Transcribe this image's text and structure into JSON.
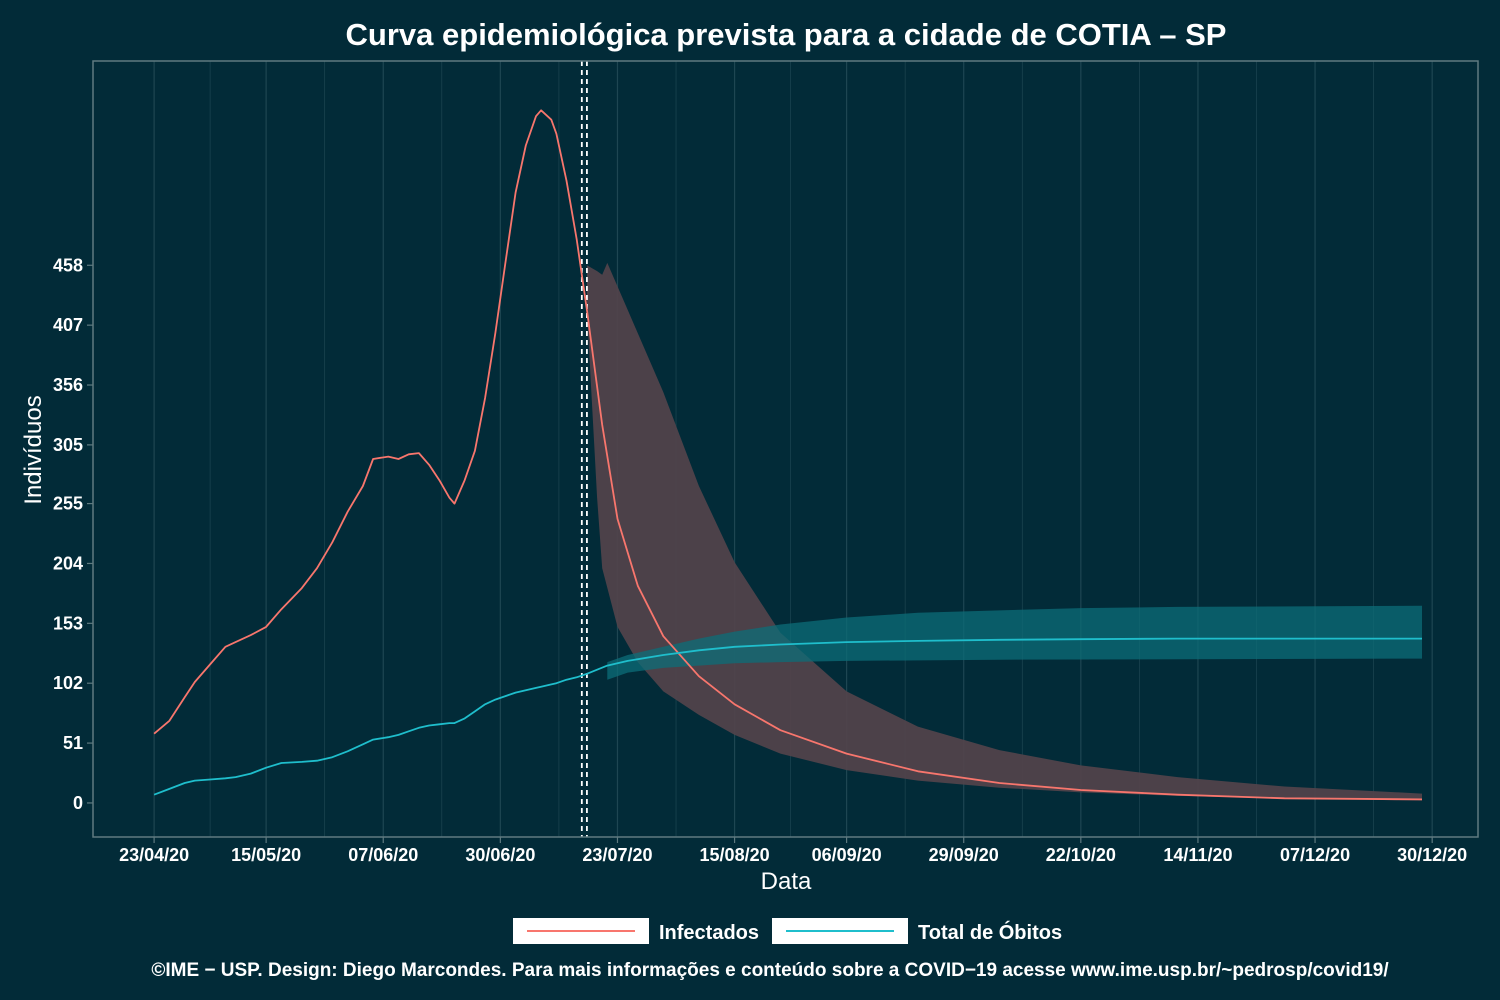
{
  "chart_data": {
    "type": "line",
    "title": "Curva epidemiológica prevista para a cidade de COTIA – SP",
    "xlabel": "Data",
    "ylabel": "Indivíduos",
    "x_ticks": [
      "23/04/20",
      "15/05/20",
      "07/06/20",
      "30/06/20",
      "23/07/20",
      "15/08/20",
      "06/09/20",
      "29/09/20",
      "22/10/20",
      "14/11/20",
      "07/12/20",
      "30/12/20"
    ],
    "y_ticks": [
      0,
      51,
      102,
      153,
      204,
      255,
      305,
      356,
      407,
      458
    ],
    "xlim": [
      "11/04/20",
      "08/01/21"
    ],
    "ylim": [
      -29,
      632
    ],
    "observed_until": [
      "16/07/20",
      "17/07/20"
    ],
    "grid": true,
    "legend_position": "bottom",
    "series": [
      {
        "name": "Infectados",
        "color": "#f8766d",
        "points": [
          [
            "23/04/20",
            59
          ],
          [
            "26/04/20",
            70
          ],
          [
            "29/04/20",
            90
          ],
          [
            "01/05/20",
            103
          ],
          [
            "04/05/20",
            118
          ],
          [
            "07/05/20",
            133
          ],
          [
            "09/05/20",
            137
          ],
          [
            "12/05/20",
            143
          ],
          [
            "15/05/20",
            150
          ],
          [
            "18/05/20",
            165
          ],
          [
            "22/05/20",
            183
          ],
          [
            "25/05/20",
            200
          ],
          [
            "28/05/20",
            222
          ],
          [
            "31/05/20",
            248
          ],
          [
            "03/06/20",
            270
          ],
          [
            "05/06/20",
            293
          ],
          [
            "08/06/20",
            295
          ],
          [
            "10/06/20",
            293
          ],
          [
            "12/06/20",
            297
          ],
          [
            "14/06/20",
            298
          ],
          [
            "16/06/20",
            288
          ],
          [
            "18/06/20",
            275
          ],
          [
            "20/06/20",
            260
          ],
          [
            "21/06/20",
            255
          ],
          [
            "23/06/20",
            275
          ],
          [
            "25/06/20",
            300
          ],
          [
            "27/06/20",
            345
          ],
          [
            "29/06/20",
            400
          ],
          [
            "01/07/20",
            460
          ],
          [
            "03/07/20",
            520
          ],
          [
            "05/07/20",
            560
          ],
          [
            "07/07/20",
            585
          ],
          [
            "08/07/20",
            590
          ],
          [
            "10/07/20",
            582
          ],
          [
            "11/07/20",
            570
          ],
          [
            "13/07/20",
            530
          ],
          [
            "15/07/20",
            480
          ],
          [
            "17/07/20",
            420
          ],
          [
            "20/07/20",
            322
          ],
          [
            "23/07/20",
            242
          ],
          [
            "27/07/20",
            185
          ],
          [
            "01/08/20",
            142
          ],
          [
            "08/08/20",
            108
          ],
          [
            "15/08/20",
            84
          ],
          [
            "24/08/20",
            62
          ],
          [
            "06/09/20",
            42
          ],
          [
            "20/09/20",
            27
          ],
          [
            "06/10/20",
            17
          ],
          [
            "22/10/20",
            11
          ],
          [
            "10/11/20",
            7
          ],
          [
            "01/12/20",
            4
          ],
          [
            "28/12/20",
            3
          ]
        ],
        "band_lower": [
          [
            "17/07/20",
            420
          ],
          [
            "19/07/20",
            260
          ],
          [
            "20/07/20",
            200
          ],
          [
            "23/07/20",
            150
          ],
          [
            "27/07/20",
            120
          ],
          [
            "01/08/20",
            95
          ],
          [
            "08/08/20",
            75
          ],
          [
            "15/08/20",
            58
          ],
          [
            "24/08/20",
            42
          ],
          [
            "06/09/20",
            28
          ],
          [
            "20/09/20",
            19
          ],
          [
            "06/10/20",
            13
          ],
          [
            "22/10/20",
            9
          ],
          [
            "10/11/20",
            6
          ],
          [
            "01/12/20",
            4
          ],
          [
            "28/12/20",
            2
          ]
        ],
        "band_upper": [
          [
            "17/07/20",
            458
          ],
          [
            "19/07/20",
            453
          ],
          [
            "20/07/20",
            450
          ],
          [
            "21/07/20",
            460
          ],
          [
            "25/07/20",
            420
          ],
          [
            "01/08/20",
            350
          ],
          [
            "08/08/20",
            270
          ],
          [
            "15/08/20",
            205
          ],
          [
            "24/08/20",
            145
          ],
          [
            "06/09/20",
            95
          ],
          [
            "20/09/20",
            65
          ],
          [
            "06/10/20",
            45
          ],
          [
            "22/10/20",
            32
          ],
          [
            "10/11/20",
            22
          ],
          [
            "01/12/20",
            14
          ],
          [
            "28/12/20",
            8
          ]
        ]
      },
      {
        "name": "Total de Óbitos",
        "color": "#1fbecc",
        "points": [
          [
            "23/04/20",
            7
          ],
          [
            "26/04/20",
            12
          ],
          [
            "29/04/20",
            17
          ],
          [
            "01/05/20",
            19
          ],
          [
            "04/05/20",
            20
          ],
          [
            "07/05/20",
            21
          ],
          [
            "09/05/20",
            22
          ],
          [
            "12/05/20",
            25
          ],
          [
            "15/05/20",
            30
          ],
          [
            "18/05/20",
            34
          ],
          [
            "22/05/20",
            35
          ],
          [
            "25/05/20",
            36
          ],
          [
            "28/05/20",
            39
          ],
          [
            "31/05/20",
            44
          ],
          [
            "03/06/20",
            50
          ],
          [
            "05/06/20",
            54
          ],
          [
            "08/06/20",
            56
          ],
          [
            "10/06/20",
            58
          ],
          [
            "12/06/20",
            61
          ],
          [
            "14/06/20",
            64
          ],
          [
            "16/06/20",
            66
          ],
          [
            "18/06/20",
            67
          ],
          [
            "20/06/20",
            68
          ],
          [
            "21/06/20",
            68
          ],
          [
            "23/06/20",
            72
          ],
          [
            "25/06/20",
            78
          ],
          [
            "27/06/20",
            84
          ],
          [
            "29/06/20",
            88
          ],
          [
            "01/07/20",
            91
          ],
          [
            "03/07/20",
            94
          ],
          [
            "05/07/20",
            96
          ],
          [
            "07/07/20",
            98
          ],
          [
            "08/07/20",
            99
          ],
          [
            "10/07/20",
            101
          ],
          [
            "11/07/20",
            102
          ],
          [
            "13/07/20",
            105
          ],
          [
            "15/07/20",
            107
          ],
          [
            "17/07/20",
            110
          ],
          [
            "21/07/20",
            117
          ],
          [
            "25/07/20",
            121
          ],
          [
            "01/08/20",
            126
          ],
          [
            "08/08/20",
            130
          ],
          [
            "15/08/20",
            133
          ],
          [
            "24/08/20",
            135
          ],
          [
            "06/09/20",
            137
          ],
          [
            "20/09/20",
            138
          ],
          [
            "06/10/20",
            139
          ],
          [
            "22/10/20",
            139.5
          ],
          [
            "10/11/20",
            140
          ],
          [
            "01/12/20",
            140
          ],
          [
            "28/12/20",
            140
          ]
        ],
        "band_lower": [
          [
            "21/07/20",
            105
          ],
          [
            "25/07/20",
            111
          ],
          [
            "01/08/20",
            115
          ],
          [
            "08/08/20",
            117
          ],
          [
            "15/08/20",
            119
          ],
          [
            "24/08/20",
            120
          ],
          [
            "06/09/20",
            121
          ],
          [
            "06/10/20",
            122
          ],
          [
            "28/12/20",
            123
          ]
        ],
        "band_upper": [
          [
            "21/07/20",
            120
          ],
          [
            "25/07/20",
            126
          ],
          [
            "01/08/20",
            133
          ],
          [
            "08/08/20",
            140
          ],
          [
            "15/08/20",
            146
          ],
          [
            "24/08/20",
            152
          ],
          [
            "06/09/20",
            158
          ],
          [
            "20/09/20",
            162
          ],
          [
            "06/10/20",
            164
          ],
          [
            "22/10/20",
            166
          ],
          [
            "10/11/20",
            167
          ],
          [
            "28/12/20",
            168
          ]
        ]
      }
    ]
  },
  "colors": {
    "background": "#022b38",
    "panel_border": "#5f7a80",
    "grid": "#1e4652",
    "text": "#ffffff",
    "band_infectados": "#52434b",
    "band_obitos": "#0c6d78",
    "vline": "#ffffff"
  },
  "footer": "©IME − USP. Design: Diego Marcondes. Para mais informações e conteúdo sobre a COVID−19 acesse www.ime.usp.br/~pedrosp/covid19/"
}
